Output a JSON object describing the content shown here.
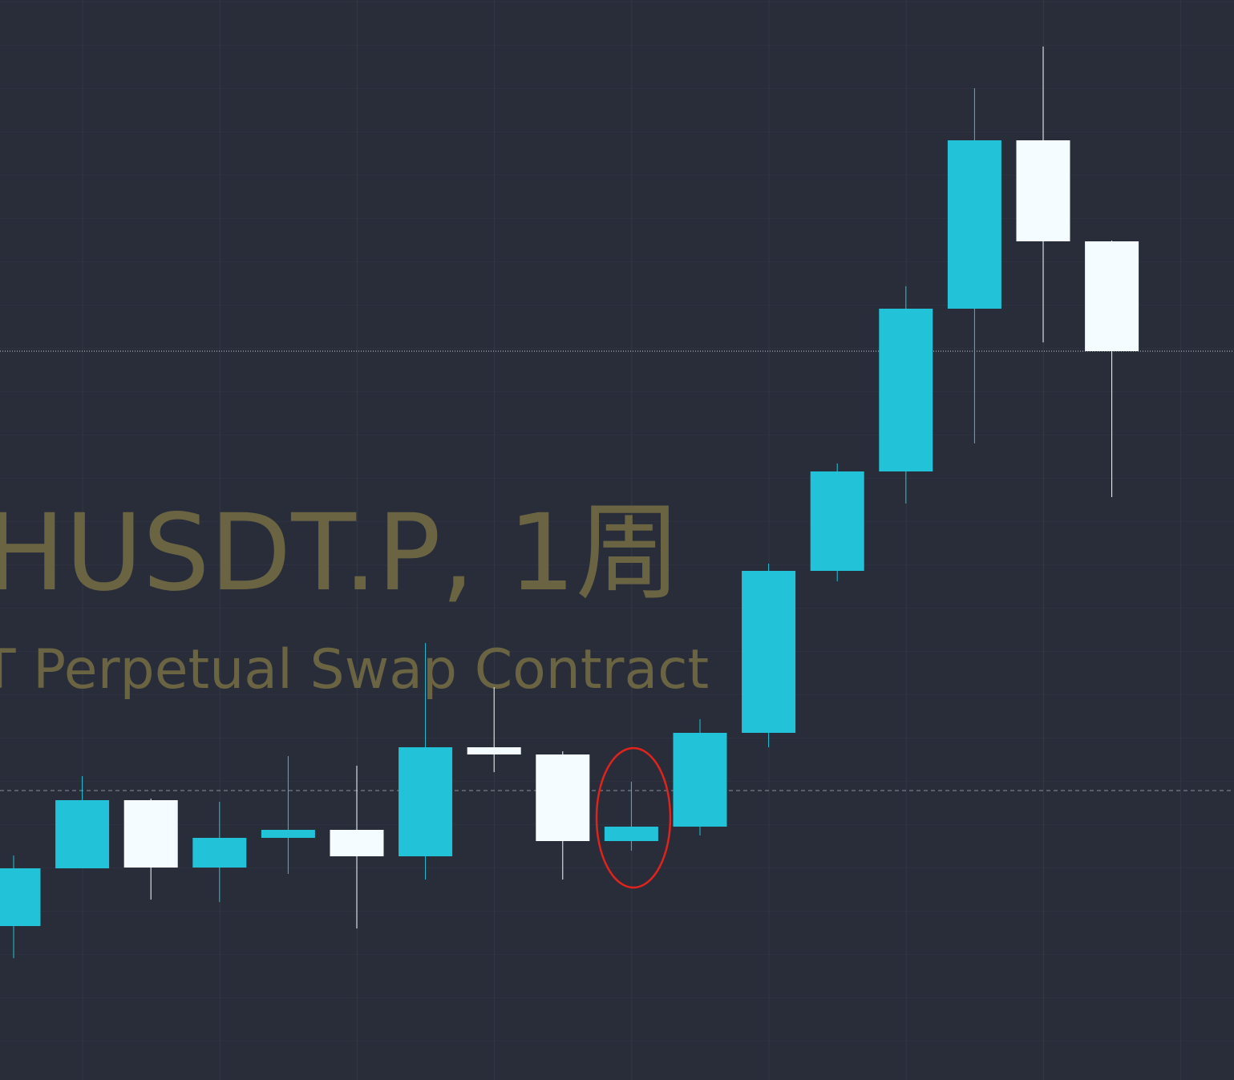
{
  "chart_data": {
    "type": "candlestick",
    "title": "HUSDT.P, 1周",
    "subtitle": "T Perpetual Swap Contract",
    "categories": [
      null,
      null,
      null,
      null,
      null,
      null,
      null,
      null,
      null,
      null,
      null,
      null,
      null,
      null,
      null,
      null,
      null
    ],
    "open": [
      192,
      264,
      349,
      265,
      302,
      312,
      279,
      415,
      406,
      298,
      316,
      433,
      635,
      759,
      962,
      1172,
      1046
    ],
    "high": [
      280,
      379,
      351,
      347,
      404,
      392,
      545,
      490,
      410,
      372,
      450,
      644,
      769,
      990,
      1237,
      1289,
      1047
    ],
    "low": [
      152,
      264,
      225,
      222,
      257,
      189,
      250,
      384,
      250,
      286,
      305,
      415,
      622,
      719,
      794,
      920,
      727
    ],
    "close": [
      264,
      349,
      265,
      302,
      312,
      279,
      415,
      406,
      298,
      316,
      433,
      635,
      759,
      962,
      1172,
      1046,
      909
    ],
    "up_color": "#22c3d8",
    "down_color": "#f5fcff",
    "reference_line": 361,
    "ylim": [
      0,
      1347
    ]
  }
}
